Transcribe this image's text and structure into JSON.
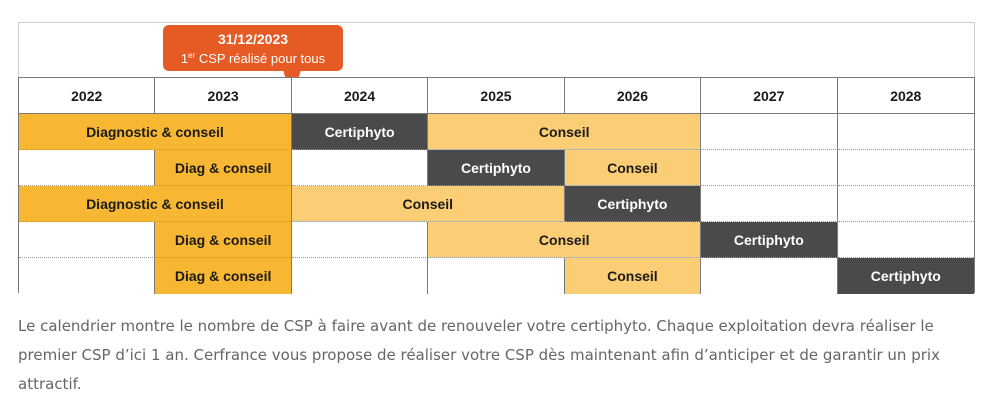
{
  "callout": {
    "date": "31/12/2023",
    "note_sup": "er",
    "note_prefix": "1",
    "note_rest": " CSP réalisé pour tous"
  },
  "years": [
    "2022",
    "2023",
    "2024",
    "2025",
    "2026",
    "2027",
    "2028"
  ],
  "rows": [
    [
      {
        "label": "Diagnostic & conseil",
        "span": 2,
        "style": "orange"
      },
      {
        "label": "Certiphyto",
        "span": 1,
        "style": "dark"
      },
      {
        "label": "Conseil",
        "span": 2,
        "style": "light"
      },
      {
        "label": "",
        "span": 1,
        "style": "white"
      },
      {
        "label": "",
        "span": 1,
        "style": "white"
      }
    ],
    [
      {
        "label": "",
        "span": 1,
        "style": "white"
      },
      {
        "label": "Diag & conseil",
        "span": 1,
        "style": "orange"
      },
      {
        "label": "",
        "span": 1,
        "style": "white"
      },
      {
        "label": "Certiphyto",
        "span": 1,
        "style": "dark"
      },
      {
        "label": "Conseil",
        "span": 1,
        "style": "light"
      },
      {
        "label": "",
        "span": 1,
        "style": "white"
      },
      {
        "label": "",
        "span": 1,
        "style": "white"
      }
    ],
    [
      {
        "label": "Diagnostic & conseil",
        "span": 2,
        "style": "orange"
      },
      {
        "label": "Conseil",
        "span": 2,
        "style": "light"
      },
      {
        "label": "Certiphyto",
        "span": 1,
        "style": "dark"
      },
      {
        "label": "",
        "span": 1,
        "style": "white"
      },
      {
        "label": "",
        "span": 1,
        "style": "white"
      }
    ],
    [
      {
        "label": "",
        "span": 1,
        "style": "white"
      },
      {
        "label": "Diag & conseil",
        "span": 1,
        "style": "orange"
      },
      {
        "label": "",
        "span": 1,
        "style": "white"
      },
      {
        "label": "Conseil",
        "span": 2,
        "style": "light"
      },
      {
        "label": "Certiphyto",
        "span": 1,
        "style": "dark"
      },
      {
        "label": "",
        "span": 1,
        "style": "white"
      }
    ],
    [
      {
        "label": "",
        "span": 1,
        "style": "white"
      },
      {
        "label": "Diag & conseil",
        "span": 1,
        "style": "orange"
      },
      {
        "label": "",
        "span": 1,
        "style": "white"
      },
      {
        "label": "",
        "span": 1,
        "style": "white"
      },
      {
        "label": "Conseil",
        "span": 1,
        "style": "light"
      },
      {
        "label": "",
        "span": 1,
        "style": "white"
      },
      {
        "label": "Certiphyto",
        "span": 1,
        "style": "dark"
      }
    ]
  ],
  "caption": "Le calendrier montre le nombre de CSP à faire avant de renouveler votre certiphyto. Chaque exploitation devra réaliser le premier CSP d’ici 1 an. Cerfrance vous propose de réaliser votre CSP dès maintenant afin d’anticiper et de garantir un prix attractif.",
  "colors": {
    "callout": "#e65a24",
    "dark": "#4a4a4a",
    "orange": "#f7b733",
    "light": "#fbcd74",
    "caption_text": "#666666"
  }
}
